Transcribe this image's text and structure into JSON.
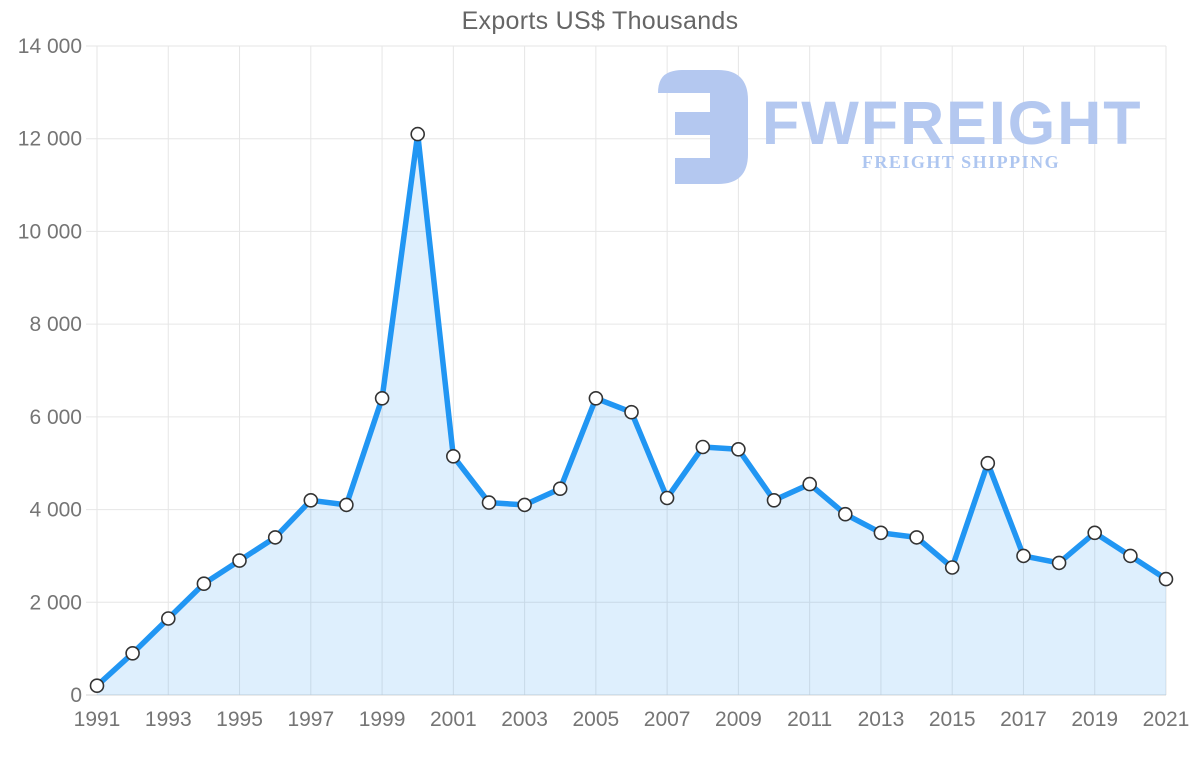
{
  "chart": {
    "title": "Exports US$ Thousands"
  },
  "watermark": {
    "brand": "FWFREIGHT",
    "tagline": "FREIGHT SHIPPING",
    "color": "#b4c8f0"
  },
  "chart_data": {
    "type": "area",
    "title": "Exports US$ Thousands",
    "xlabel": "",
    "ylabel": "",
    "x": [
      1991,
      1992,
      1993,
      1994,
      1995,
      1996,
      1997,
      1998,
      1999,
      2000,
      2001,
      2002,
      2003,
      2004,
      2005,
      2006,
      2007,
      2008,
      2009,
      2010,
      2011,
      2012,
      2013,
      2014,
      2015,
      2016,
      2017,
      2018,
      2019,
      2020,
      2021
    ],
    "values": [
      200,
      900,
      1650,
      2400,
      2900,
      3400,
      4200,
      4100,
      6400,
      12100,
      5150,
      4150,
      4100,
      4450,
      6400,
      6100,
      4250,
      5350,
      5300,
      4200,
      4550,
      3900,
      3500,
      3400,
      2750,
      5000,
      3000,
      2850,
      3500,
      3000,
      2500
    ],
    "ylim": [
      0,
      14000
    ],
    "y_ticks": [
      0,
      2000,
      4000,
      6000,
      8000,
      10000,
      12000,
      14000
    ],
    "y_tick_labels": [
      "0",
      "2 000",
      "4 000",
      "6 000",
      "8 000",
      "10 000",
      "12 000",
      "14 000"
    ],
    "x_tick_years": [
      1991,
      1993,
      1995,
      1997,
      1999,
      2001,
      2003,
      2005,
      2007,
      2009,
      2011,
      2013,
      2015,
      2017,
      2019,
      2021
    ],
    "grid": true,
    "legend": false,
    "colors": {
      "line": "#2196f3",
      "fill": "rgba(33,150,243,0.15)",
      "marker_fill": "#ffffff",
      "marker_stroke": "#333333",
      "grid": "#e6e6e6",
      "axis_line": "#d6d6d6",
      "tick_label": "#757575",
      "title": "#666666"
    }
  }
}
